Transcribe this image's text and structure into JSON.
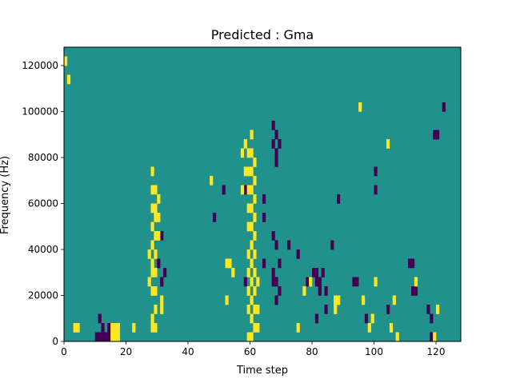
{
  "chart_data": {
    "type": "heatmap",
    "title": "Predicted : Gma",
    "xlabel": "Time step",
    "ylabel": "Frequency (Hz)",
    "xlim": [
      0,
      128
    ],
    "ylim": [
      0,
      128000
    ],
    "x_ticks": [
      0,
      20,
      40,
      60,
      80,
      100,
      120
    ],
    "x_tick_labels": [
      "0",
      "20",
      "40",
      "60",
      "80",
      "100",
      "120"
    ],
    "y_ticks": [
      0,
      20000,
      40000,
      60000,
      80000,
      100000,
      120000
    ],
    "y_tick_labels": [
      "0",
      "20000",
      "40000",
      "60000",
      "80000",
      "100000",
      "120000"
    ],
    "grid": false,
    "value_levels": [
      -1,
      0,
      1
    ],
    "colormap": "viridis",
    "colors": {
      "low": "#440154",
      "mid": "#21918c",
      "high": "#fde725"
    },
    "background_value": 0,
    "cells": {
      "high": [
        [
          0,
          123000
        ],
        [
          1,
          115000
        ],
        [
          3,
          4000
        ],
        [
          4,
          4000
        ],
        [
          15,
          3000
        ],
        [
          15,
          7000
        ],
        [
          16,
          2000
        ],
        [
          16,
          4000
        ],
        [
          17,
          3000
        ],
        [
          17,
          7000
        ],
        [
          22,
          6000
        ],
        [
          27,
          38000
        ],
        [
          27,
          27000
        ],
        [
          28,
          11000
        ],
        [
          28,
          6000
        ],
        [
          28,
          20000
        ],
        [
          28,
          28000
        ],
        [
          28,
          35000
        ],
        [
          28,
          42000
        ],
        [
          28,
          49000
        ],
        [
          28,
          57000
        ],
        [
          28,
          66000
        ],
        [
          28,
          75000
        ],
        [
          29,
          6000
        ],
        [
          29,
          14000
        ],
        [
          29,
          22000
        ],
        [
          29,
          30000
        ],
        [
          29,
          37000
        ],
        [
          29,
          44000
        ],
        [
          29,
          52000
        ],
        [
          29,
          59000
        ],
        [
          29,
          66000
        ],
        [
          30,
          53000
        ],
        [
          30,
          45000
        ],
        [
          30,
          60000
        ],
        [
          31,
          18000
        ],
        [
          31,
          12000
        ],
        [
          47,
          71000
        ],
        [
          52,
          17000
        ],
        [
          52,
          33000
        ],
        [
          53,
          33000
        ],
        [
          54,
          31000
        ],
        [
          57,
          66000
        ],
        [
          57,
          80000
        ],
        [
          58,
          75000
        ],
        [
          58,
          85000
        ],
        [
          59,
          3000
        ],
        [
          59,
          12000
        ],
        [
          59,
          21000
        ],
        [
          59,
          30000
        ],
        [
          59,
          39000
        ],
        [
          59,
          48000
        ],
        [
          59,
          57000
        ],
        [
          59,
          66000
        ],
        [
          59,
          75000
        ],
        [
          59,
          82000
        ],
        [
          60,
          3000
        ],
        [
          60,
          11000
        ],
        [
          60,
          19000
        ],
        [
          60,
          27000
        ],
        [
          60,
          35000
        ],
        [
          60,
          43000
        ],
        [
          60,
          51000
        ],
        [
          60,
          59000
        ],
        [
          60,
          67000
        ],
        [
          60,
          75000
        ],
        [
          60,
          82000
        ],
        [
          60,
          88000
        ],
        [
          61,
          6000
        ],
        [
          61,
          14000
        ],
        [
          61,
          22000
        ],
        [
          61,
          30000
        ],
        [
          61,
          38000
        ],
        [
          61,
          46000
        ],
        [
          61,
          54000
        ],
        [
          61,
          62000
        ],
        [
          61,
          70000
        ],
        [
          61,
          78000
        ],
        [
          62,
          15000
        ],
        [
          62,
          5000
        ],
        [
          62,
          25000
        ],
        [
          75,
          5000
        ],
        [
          77,
          22000
        ],
        [
          79,
          25000
        ],
        [
          87,
          18000
        ],
        [
          87,
          12000
        ],
        [
          88,
          19000
        ],
        [
          88,
          17000
        ],
        [
          95,
          100000
        ],
        [
          96,
          16000
        ],
        [
          98,
          6000
        ],
        [
          99,
          11000
        ],
        [
          100,
          24000
        ],
        [
          104,
          86000
        ],
        [
          105,
          6000
        ],
        [
          106,
          17000
        ],
        [
          107,
          3000
        ],
        [
          113,
          26000
        ],
        [
          119,
          2000
        ],
        [
          120,
          13000
        ]
      ],
      "low": [
        [
          10,
          3000
        ],
        [
          11,
          3000
        ],
        [
          11,
          8000
        ],
        [
          12,
          3000
        ],
        [
          12,
          6000
        ],
        [
          13,
          3000
        ],
        [
          14,
          3000
        ],
        [
          14,
          6000
        ],
        [
          30,
          35000
        ],
        [
          31,
          25000
        ],
        [
          31,
          45000
        ],
        [
          32,
          29000
        ],
        [
          48,
          54000
        ],
        [
          51,
          65000
        ],
        [
          58,
          27000
        ],
        [
          58,
          67000
        ],
        [
          64,
          52000
        ],
        [
          64,
          60000
        ],
        [
          64,
          35000
        ],
        [
          67,
          25000
        ],
        [
          67,
          28000
        ],
        [
          67,
          45000
        ],
        [
          67,
          85000
        ],
        [
          67,
          94000
        ],
        [
          68,
          89000
        ],
        [
          68,
          83000
        ],
        [
          68,
          79000
        ],
        [
          68,
          43000
        ],
        [
          68,
          25000
        ],
        [
          68,
          19000
        ],
        [
          69,
          85000
        ],
        [
          69,
          33000
        ],
        [
          69,
          22000
        ],
        [
          72,
          41000
        ],
        [
          75,
          37000
        ],
        [
          78,
          24000
        ],
        [
          80,
          30000
        ],
        [
          81,
          28000
        ],
        [
          81,
          25000
        ],
        [
          81,
          9000
        ],
        [
          82,
          25000
        ],
        [
          82,
          22000
        ],
        [
          83,
          29000
        ],
        [
          84,
          20000
        ],
        [
          84,
          13000
        ],
        [
          86,
          41000
        ],
        [
          88,
          61000
        ],
        [
          93,
          24000
        ],
        [
          94,
          24000
        ],
        [
          97,
          10000
        ],
        [
          100,
          74000
        ],
        [
          100,
          67000
        ],
        [
          104,
          14000
        ],
        [
          111,
          32000
        ],
        [
          112,
          32000
        ],
        [
          112,
          23000
        ],
        [
          113,
          23000
        ],
        [
          117,
          15000
        ],
        [
          118,
          10000
        ],
        [
          118,
          2000
        ],
        [
          119,
          89000
        ],
        [
          120,
          89000
        ],
        [
          122,
          102000
        ]
      ]
    }
  }
}
